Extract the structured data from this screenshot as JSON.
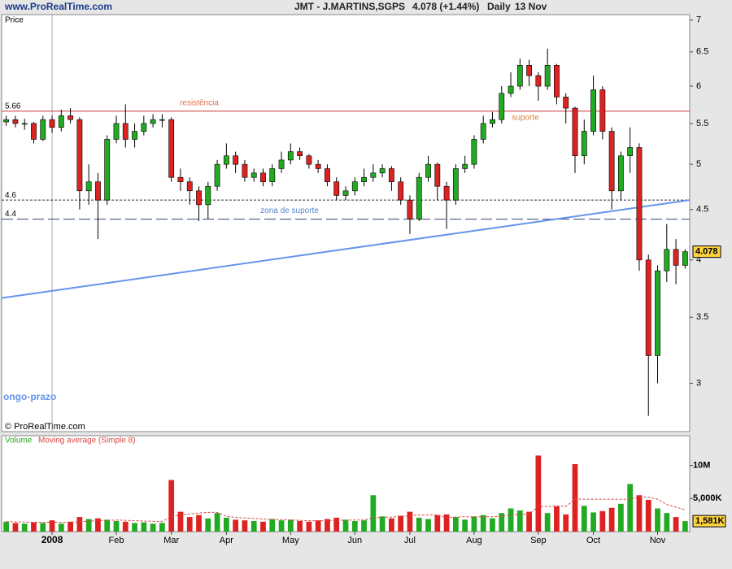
{
  "header": {
    "site": "www.ProRealTime.com",
    "symbol": "JMT - J.MARTINS,SGPS",
    "quote": "4.078 (+1.44%)",
    "period": "Daily",
    "date": "13 Nov"
  },
  "chart_data": [
    {
      "type": "candlestick",
      "y_label": "Price",
      "credit": "© ProRealTime.com",
      "open": [
        5.52,
        5.55,
        5.5,
        5.5,
        5.3,
        5.55,
        5.45,
        5.6,
        5.55,
        4.7,
        4.8,
        4.6,
        5.3,
        5.5,
        5.3,
        5.4,
        5.5,
        5.55,
        5.55,
        4.85,
        4.8,
        4.7,
        4.55,
        4.75,
        5.0,
        5.1,
        5.0,
        4.85,
        4.9,
        4.8,
        4.95,
        5.05,
        5.15,
        5.1,
        5.0,
        4.95,
        4.8,
        4.65,
        4.7,
        4.8,
        4.85,
        4.9,
        4.95,
        4.8,
        4.6,
        4.4,
        4.85,
        5.0,
        4.75,
        4.6,
        4.95,
        5.0,
        5.3,
        5.5,
        5.55,
        5.9,
        6.0,
        6.3,
        6.15,
        6.0,
        6.3,
        5.85,
        5.7,
        5.1,
        5.4,
        5.95,
        5.4,
        4.7,
        5.1,
        5.2,
        4.0,
        3.2,
        3.9,
        4.1,
        3.95
      ],
      "high": [
        5.6,
        5.6,
        5.56,
        5.52,
        5.6,
        5.6,
        5.68,
        5.7,
        5.58,
        5.0,
        4.9,
        5.35,
        5.6,
        5.75,
        5.5,
        5.6,
        5.62,
        5.62,
        5.58,
        4.95,
        4.85,
        4.75,
        4.8,
        5.05,
        5.25,
        5.15,
        5.05,
        4.95,
        4.95,
        5.0,
        5.15,
        5.25,
        5.2,
        5.12,
        5.05,
        5.0,
        4.85,
        4.75,
        4.85,
        4.95,
        5.0,
        5.0,
        4.98,
        4.85,
        4.65,
        4.9,
        5.1,
        5.02,
        4.8,
        5.0,
        5.1,
        5.35,
        5.6,
        5.65,
        6.0,
        6.2,
        6.4,
        6.38,
        6.2,
        6.55,
        6.32,
        5.9,
        5.72,
        5.55,
        6.15,
        6.0,
        5.45,
        5.15,
        5.45,
        5.25,
        4.05,
        3.95,
        4.35,
        4.2,
        4.1
      ],
      "low": [
        5.47,
        5.45,
        5.42,
        5.25,
        5.28,
        5.38,
        5.4,
        5.5,
        4.5,
        4.55,
        4.2,
        4.55,
        5.25,
        5.2,
        5.2,
        5.35,
        5.45,
        5.45,
        4.8,
        4.7,
        4.55,
        4.38,
        4.4,
        4.7,
        4.95,
        4.9,
        4.8,
        4.8,
        4.75,
        4.75,
        4.9,
        5.0,
        5.05,
        4.95,
        4.9,
        4.75,
        4.6,
        4.6,
        4.65,
        4.75,
        4.8,
        4.85,
        4.7,
        4.55,
        4.25,
        4.38,
        4.8,
        4.6,
        4.3,
        4.55,
        4.9,
        4.95,
        5.25,
        5.45,
        5.5,
        5.85,
        5.95,
        6.0,
        5.8,
        5.95,
        5.75,
        5.5,
        4.9,
        5.0,
        5.35,
        5.3,
        4.5,
        4.6,
        4.9,
        3.9,
        2.78,
        3.0,
        3.8,
        3.78,
        3.92
      ],
      "close": [
        5.55,
        5.5,
        5.5,
        5.3,
        5.55,
        5.45,
        5.6,
        5.55,
        4.7,
        4.8,
        4.6,
        5.3,
        5.5,
        5.3,
        5.4,
        5.5,
        5.55,
        5.55,
        4.85,
        4.8,
        4.7,
        4.55,
        4.75,
        5.0,
        5.1,
        5.0,
        4.85,
        4.9,
        4.8,
        4.95,
        5.05,
        5.15,
        5.1,
        5.0,
        4.95,
        4.8,
        4.65,
        4.7,
        4.8,
        4.85,
        4.9,
        4.95,
        4.8,
        4.6,
        4.4,
        4.85,
        5.0,
        4.75,
        4.6,
        4.95,
        5.0,
        5.3,
        5.5,
        5.55,
        5.9,
        6.0,
        6.3,
        6.15,
        6.0,
        6.3,
        5.85,
        5.7,
        5.1,
        5.4,
        5.95,
        5.4,
        4.7,
        5.1,
        5.2,
        4.0,
        3.2,
        3.9,
        4.1,
        3.95,
        4.078
      ],
      "up_color": "#22aa22",
      "down_color": "#dd2222",
      "log": true,
      "ylim": [
        2.68,
        7.09
      ],
      "yticks": [
        7,
        6.5,
        6,
        5.5,
        5,
        4.5,
        4,
        3.5,
        3
      ],
      "xticks": [
        {
          "value": 5,
          "label": "2008"
        },
        {
          "value": 12,
          "label": "Feb"
        },
        {
          "value": 18,
          "label": "Mar"
        },
        {
          "value": 24,
          "label": "Apr"
        },
        {
          "value": 31,
          "label": "May"
        },
        {
          "value": 38,
          "label": "Jun"
        },
        {
          "value": 44,
          "label": "Jul"
        },
        {
          "value": 51,
          "label": "Aug"
        },
        {
          "value": 58,
          "label": "Sep"
        },
        {
          "value": 64,
          "label": "Oct"
        },
        {
          "value": 71,
          "label": "Nov"
        }
      ],
      "levels": [
        {
          "value": 5.66,
          "color": "#cc3333",
          "dash": false,
          "text": "resistência",
          "text_color": "#e07050",
          "note": "suporte",
          "note_color": "#e08030"
        },
        {
          "value": 4.6,
          "color": "#333333",
          "dash": true
        },
        {
          "value": 4.4,
          "color": "#334477",
          "dash": true,
          "text": "zona de suporte",
          "text_color": "#5588cc"
        }
      ],
      "trendline": {
        "start": 3.66,
        "end": 4.6,
        "color": "#6495ed",
        "text": "ongo-prazo"
      }
    },
    {
      "type": "bar",
      "title": "Volume",
      "title_color": "#22aa22",
      "ma_title": "Moving average (Simple 8)",
      "ma_color": "#dd4444",
      "values": [
        1500,
        1300,
        1200,
        1400,
        1300,
        1700,
        1200,
        1500,
        2200,
        1900,
        2000,
        1800,
        1600,
        1500,
        1300,
        1400,
        1200,
        1300,
        7800,
        3000,
        2200,
        2500,
        2000,
        2800,
        2100,
        1800,
        1700,
        1600,
        1500,
        1900,
        1700,
        1800,
        1600,
        1500,
        1700,
        1900,
        2100,
        1800,
        1600,
        1700,
        5500,
        2300,
        2000,
        2400,
        3000,
        2100,
        1900,
        2500,
        2600,
        2200,
        1800,
        2300,
        2500,
        2000,
        2800,
        3500,
        3200,
        3000,
        11500,
        2800,
        3800,
        2600,
        10200,
        3900,
        2900,
        3100,
        3600,
        4200,
        7200,
        5500,
        4800,
        3500,
        2800,
        2200,
        1581
      ],
      "ma": [
        1500,
        1480,
        1450,
        1420,
        1400,
        1420,
        1400,
        1420,
        1500,
        1580,
        1650,
        1700,
        1750,
        1700,
        1650,
        1600,
        1550,
        1500,
        2300,
        2500,
        2650,
        2800,
        2900,
        2900,
        2300,
        2150,
        2050,
        2000,
        1900,
        1850,
        1800,
        1750,
        1700,
        1650,
        1650,
        1650,
        1700,
        1720,
        1750,
        1750,
        2100,
        2150,
        2200,
        2300,
        2400,
        2500,
        2500,
        2500,
        2100,
        2200,
        2250,
        2200,
        2250,
        2250,
        2300,
        2500,
        2600,
        2650,
        3800,
        3800,
        3900,
        3800,
        4900,
        4900,
        4900,
        4900,
        4900,
        4900,
        4900,
        5200,
        5200,
        4900,
        4100,
        3700,
        3300
      ],
      "current_value_label": "1,581K",
      "ylim": [
        0,
        14500
      ],
      "yticks": [
        {
          "value": 5000,
          "label": "5,000K"
        },
        {
          "value": 10000,
          "label": "10M"
        }
      ]
    }
  ]
}
